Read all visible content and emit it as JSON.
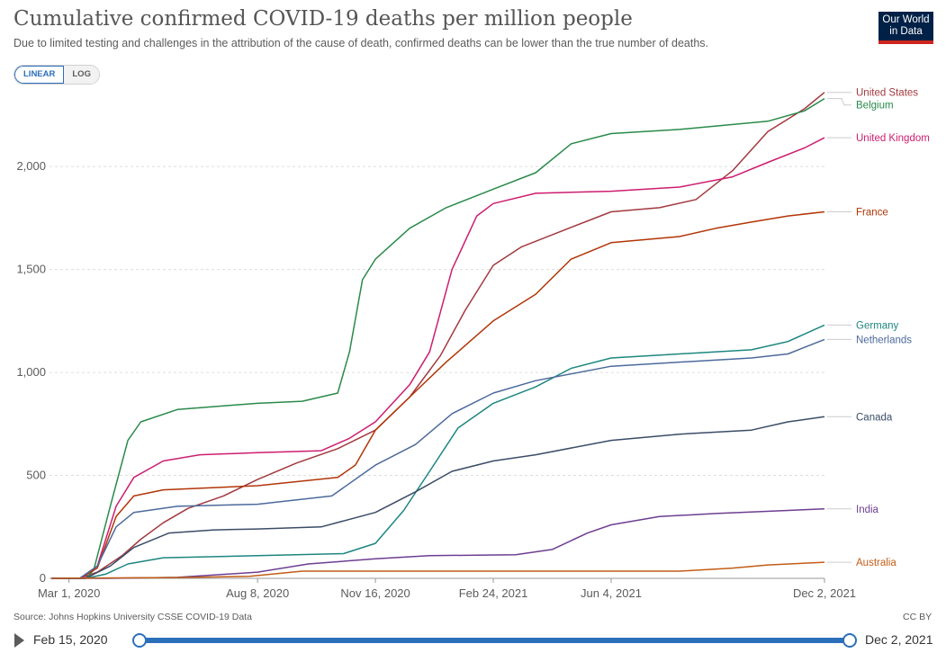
{
  "header": {
    "title": "Cumulative confirmed COVID-19 deaths per million people",
    "subtitle": "Due to limited testing and challenges in the attribution of the cause of death, confirmed deaths can be lower than the true number of deaths.",
    "logo_line1": "Our World",
    "logo_line2": "in Data"
  },
  "scale_toggle": {
    "linear": "LINEAR",
    "log": "LOG",
    "selected": "linear"
  },
  "footer": {
    "source": "Source: Johns Hopkins University CSSE COVID-19 Data",
    "license": "CC BY"
  },
  "timeline": {
    "start": "Feb 15, 2020",
    "end": "Dec 2, 2021"
  },
  "chart_data": {
    "type": "line",
    "title": "Cumulative confirmed COVID-19 deaths per million people",
    "x_type": "date",
    "x_range": [
      "2020-02-15",
      "2021-12-02"
    ],
    "x_ticks": [
      {
        "date": "2020-03-01",
        "label": "Mar 1, 2020"
      },
      {
        "date": "2020-08-08",
        "label": "Aug 8, 2020"
      },
      {
        "date": "2020-11-16",
        "label": "Nov 16, 2020"
      },
      {
        "date": "2021-02-24",
        "label": "Feb 24, 2021"
      },
      {
        "date": "2021-06-04",
        "label": "Jun 4, 2021"
      },
      {
        "date": "2021-12-02",
        "label": "Dec 2, 2021"
      }
    ],
    "ylim": [
      0,
      2350
    ],
    "y_ticks": [
      {
        "value": 0,
        "label": "0"
      },
      {
        "value": 500,
        "label": "500"
      },
      {
        "value": 1000,
        "label": "1,000"
      },
      {
        "value": 1500,
        "label": "1,500"
      },
      {
        "value": 2000,
        "label": "2,000"
      }
    ],
    "grid": true,
    "legend": "right",
    "series": [
      {
        "name": "United States",
        "color": "#a2393f",
        "points": [
          [
            "2020-02-15",
            0
          ],
          [
            "2020-03-10",
            0
          ],
          [
            "2020-03-25",
            30
          ],
          [
            "2020-04-15",
            110
          ],
          [
            "2020-05-01",
            190
          ],
          [
            "2020-05-20",
            270
          ],
          [
            "2020-06-10",
            340
          ],
          [
            "2020-07-10",
            400
          ],
          [
            "2020-08-08",
            480
          ],
          [
            "2020-09-10",
            560
          ],
          [
            "2020-10-15",
            630
          ],
          [
            "2020-11-16",
            720
          ],
          [
            "2020-12-15",
            880
          ],
          [
            "2021-01-10",
            1080
          ],
          [
            "2021-01-31",
            1300
          ],
          [
            "2021-02-24",
            1520
          ],
          [
            "2021-03-20",
            1610
          ],
          [
            "2021-04-20",
            1680
          ],
          [
            "2021-06-04",
            1780
          ],
          [
            "2021-07-15",
            1800
          ],
          [
            "2021-08-15",
            1840
          ],
          [
            "2021-09-15",
            1980
          ],
          [
            "2021-10-15",
            2170
          ],
          [
            "2021-11-15",
            2280
          ],
          [
            "2021-12-02",
            2360
          ]
        ]
      },
      {
        "name": "Belgium",
        "color": "#2a8a4a",
        "points": [
          [
            "2020-02-15",
            0
          ],
          [
            "2020-03-15",
            0
          ],
          [
            "2020-03-22",
            40
          ],
          [
            "2020-04-05",
            350
          ],
          [
            "2020-04-20",
            670
          ],
          [
            "2020-05-01",
            760
          ],
          [
            "2020-06-01",
            820
          ],
          [
            "2020-07-15",
            840
          ],
          [
            "2020-08-08",
            850
          ],
          [
            "2020-09-15",
            860
          ],
          [
            "2020-10-15",
            900
          ],
          [
            "2020-10-25",
            1100
          ],
          [
            "2020-11-05",
            1450
          ],
          [
            "2020-11-16",
            1550
          ],
          [
            "2020-12-15",
            1700
          ],
          [
            "2021-01-15",
            1800
          ],
          [
            "2021-02-24",
            1890
          ],
          [
            "2021-04-01",
            1970
          ],
          [
            "2021-05-01",
            2110
          ],
          [
            "2021-06-04",
            2160
          ],
          [
            "2021-08-01",
            2180
          ],
          [
            "2021-10-15",
            2220
          ],
          [
            "2021-11-15",
            2270
          ],
          [
            "2021-12-02",
            2330
          ]
        ]
      },
      {
        "name": "United Kingdom",
        "color": "#cd1d6f",
        "points": [
          [
            "2020-02-15",
            0
          ],
          [
            "2020-03-12",
            0
          ],
          [
            "2020-03-25",
            60
          ],
          [
            "2020-04-10",
            350
          ],
          [
            "2020-04-25",
            490
          ],
          [
            "2020-05-20",
            570
          ],
          [
            "2020-06-20",
            600
          ],
          [
            "2020-08-08",
            610
          ],
          [
            "2020-10-01",
            620
          ],
          [
            "2020-10-25",
            680
          ],
          [
            "2020-11-16",
            760
          ],
          [
            "2020-12-15",
            940
          ],
          [
            "2021-01-01",
            1100
          ],
          [
            "2021-01-20",
            1500
          ],
          [
            "2021-02-10",
            1760
          ],
          [
            "2021-02-24",
            1820
          ],
          [
            "2021-04-01",
            1870
          ],
          [
            "2021-06-04",
            1880
          ],
          [
            "2021-08-01",
            1900
          ],
          [
            "2021-09-15",
            1950
          ],
          [
            "2021-10-15",
            2020
          ],
          [
            "2021-11-15",
            2090
          ],
          [
            "2021-12-02",
            2140
          ]
        ]
      },
      {
        "name": "France",
        "color": "#b13507",
        "points": [
          [
            "2020-02-15",
            0
          ],
          [
            "2020-03-10",
            0
          ],
          [
            "2020-03-25",
            50
          ],
          [
            "2020-04-10",
            300
          ],
          [
            "2020-04-25",
            400
          ],
          [
            "2020-05-20",
            430
          ],
          [
            "2020-08-08",
            450
          ],
          [
            "2020-10-15",
            490
          ],
          [
            "2020-10-30",
            550
          ],
          [
            "2020-11-16",
            720
          ],
          [
            "2020-12-15",
            880
          ],
          [
            "2021-01-15",
            1050
          ],
          [
            "2021-02-24",
            1250
          ],
          [
            "2021-04-01",
            1380
          ],
          [
            "2021-05-01",
            1550
          ],
          [
            "2021-06-04",
            1630
          ],
          [
            "2021-08-01",
            1660
          ],
          [
            "2021-09-01",
            1700
          ],
          [
            "2021-10-01",
            1730
          ],
          [
            "2021-11-01",
            1760
          ],
          [
            "2021-12-02",
            1780
          ]
        ]
      },
      {
        "name": "Germany",
        "color": "#1d8680",
        "points": [
          [
            "2020-02-15",
            0
          ],
          [
            "2020-03-15",
            0
          ],
          [
            "2020-04-01",
            20
          ],
          [
            "2020-04-20",
            70
          ],
          [
            "2020-05-20",
            100
          ],
          [
            "2020-08-08",
            110
          ],
          [
            "2020-10-20",
            120
          ],
          [
            "2020-11-16",
            170
          ],
          [
            "2020-12-10",
            330
          ],
          [
            "2021-01-01",
            520
          ],
          [
            "2021-01-25",
            730
          ],
          [
            "2021-02-24",
            850
          ],
          [
            "2021-04-01",
            930
          ],
          [
            "2021-05-01",
            1020
          ],
          [
            "2021-06-04",
            1070
          ],
          [
            "2021-08-01",
            1090
          ],
          [
            "2021-10-01",
            1110
          ],
          [
            "2021-11-01",
            1150
          ],
          [
            "2021-12-02",
            1230
          ]
        ]
      },
      {
        "name": "Netherlands",
        "color": "#4c6a9c",
        "points": [
          [
            "2020-02-15",
            0
          ],
          [
            "2020-03-10",
            0
          ],
          [
            "2020-03-25",
            60
          ],
          [
            "2020-04-10",
            250
          ],
          [
            "2020-04-25",
            320
          ],
          [
            "2020-06-01",
            350
          ],
          [
            "2020-08-08",
            360
          ],
          [
            "2020-10-10",
            400
          ],
          [
            "2020-11-16",
            550
          ],
          [
            "2020-12-20",
            650
          ],
          [
            "2021-01-20",
            800
          ],
          [
            "2021-02-24",
            900
          ],
          [
            "2021-04-01",
            960
          ],
          [
            "2021-06-04",
            1030
          ],
          [
            "2021-08-01",
            1050
          ],
          [
            "2021-10-01",
            1070
          ],
          [
            "2021-11-01",
            1090
          ],
          [
            "2021-12-02",
            1160
          ]
        ]
      },
      {
        "name": "Canada",
        "color": "#3a4c66",
        "points": [
          [
            "2020-02-15",
            0
          ],
          [
            "2020-03-15",
            0
          ],
          [
            "2020-04-05",
            60
          ],
          [
            "2020-04-25",
            150
          ],
          [
            "2020-05-25",
            220
          ],
          [
            "2020-07-01",
            235
          ],
          [
            "2020-08-08",
            240
          ],
          [
            "2020-10-01",
            250
          ],
          [
            "2020-11-16",
            320
          ],
          [
            "2020-12-20",
            420
          ],
          [
            "2021-01-20",
            520
          ],
          [
            "2021-02-24",
            570
          ],
          [
            "2021-04-01",
            600
          ],
          [
            "2021-06-04",
            670
          ],
          [
            "2021-08-01",
            700
          ],
          [
            "2021-10-01",
            720
          ],
          [
            "2021-11-01",
            760
          ],
          [
            "2021-12-02",
            785
          ]
        ]
      },
      {
        "name": "India",
        "color": "#6d3e91",
        "points": [
          [
            "2020-02-15",
            0
          ],
          [
            "2020-04-01",
            0
          ],
          [
            "2020-06-01",
            5
          ],
          [
            "2020-08-08",
            30
          ],
          [
            "2020-09-20",
            70
          ],
          [
            "2020-11-16",
            95
          ],
          [
            "2021-01-01",
            110
          ],
          [
            "2021-03-15",
            115
          ],
          [
            "2021-04-15",
            140
          ],
          [
            "2021-05-15",
            220
          ],
          [
            "2021-06-04",
            260
          ],
          [
            "2021-07-15",
            300
          ],
          [
            "2021-09-01",
            315
          ],
          [
            "2021-11-01",
            330
          ],
          [
            "2021-12-02",
            337
          ]
        ]
      },
      {
        "name": "Australia",
        "color": "#c15d16",
        "points": [
          [
            "2020-02-15",
            0
          ],
          [
            "2020-06-01",
            4
          ],
          [
            "2020-08-01",
            10
          ],
          [
            "2020-09-15",
            35
          ],
          [
            "2021-02-24",
            35
          ],
          [
            "2021-08-01",
            35
          ],
          [
            "2021-09-15",
            50
          ],
          [
            "2021-10-15",
            65
          ],
          [
            "2021-12-02",
            78
          ]
        ]
      }
    ]
  }
}
